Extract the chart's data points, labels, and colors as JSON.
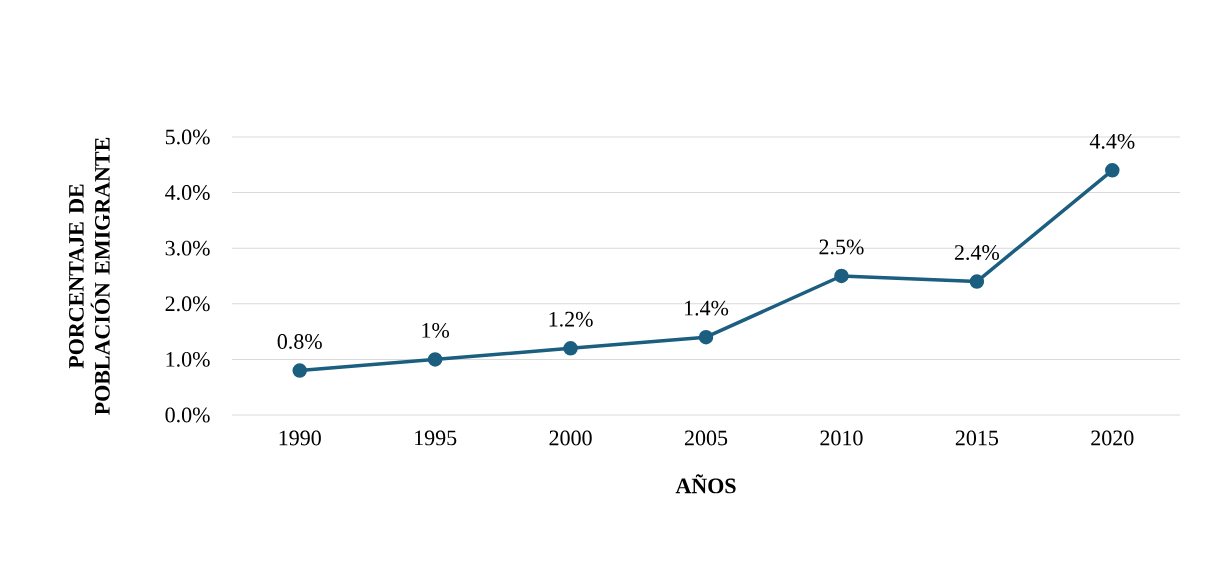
{
  "chart_data": {
    "type": "line",
    "xlabel": "AÑOS",
    "ylabel": "PORCENTAJE DE POBLACIÓN EMIGRANTE",
    "categories": [
      "1990",
      "1995",
      "2000",
      "2005",
      "2010",
      "2015",
      "2020"
    ],
    "series": [
      {
        "color": "#1b5e80",
        "values": [
          0.8,
          1,
          1.2,
          1.4,
          2.5,
          2.4,
          4.4
        ],
        "value_labels": [
          "0.8%",
          "1%",
          "1.2%",
          "1.4%",
          "2.5%",
          "2.4%",
          "4.4%"
        ]
      }
    ],
    "ylim": [
      0,
      5
    ],
    "yticks": [
      {
        "value": 0,
        "label": "0.0%"
      },
      {
        "value": 1,
        "label": "1.0%"
      },
      {
        "value": 2,
        "label": "2.0%"
      },
      {
        "value": 3,
        "label": "3.0%"
      },
      {
        "value": 4,
        "label": "4.0%"
      },
      {
        "value": 5,
        "label": "5.0%"
      }
    ],
    "grid": "y",
    "marker": "circle",
    "line_style": "solid"
  }
}
